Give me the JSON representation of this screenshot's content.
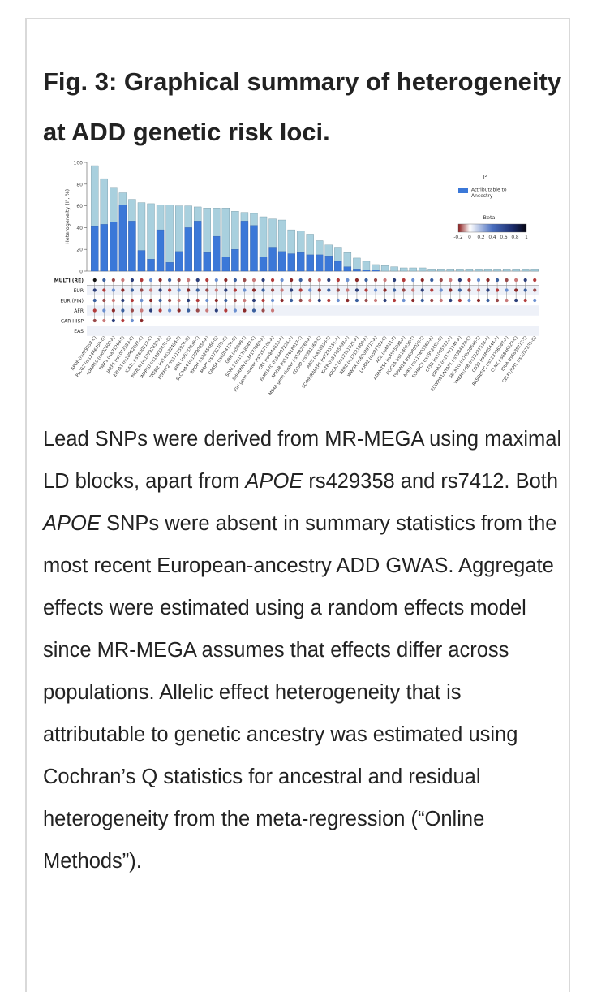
{
  "figure": {
    "title": "Fig. 3: Graphical summary of heterogeneity at ADD genetic risk loci."
  },
  "caption": {
    "t1": "Lead SNPs were derived from MR-MEGA using maximal LD blocks, apart from ",
    "gene1": "APOE",
    "t2": " rs429358 and rs7412. Both ",
    "gene2": "APOE",
    "t3": " SNPs were absent in summary statistics from the most recent European-ancestry ADD GWAS. Aggregate effects were estimated using a random effects model since MR-MEGA assumes that effects differ across populations. Allelic effect heterogeneity that is attributable to genetic ancestry was estimated using Cochran’s Q statistics for ancestral and residual heterogeneity from the meta-regression (“Online Methods”)."
  },
  "colors": {
    "total_bar": "#a9d0de",
    "ancestry_bar": "#3b78d8",
    "beta_neg": "#8b2a2a",
    "beta_pos": "#3b5f9e",
    "beta_mid": "#ffffff"
  },
  "chart_data": {
    "type": "bar",
    "ylabel": "Heterogeneity (I², %)",
    "yticks": [
      0,
      20,
      40,
      60,
      80,
      100
    ],
    "ylim": [
      0,
      100
    ],
    "legend": {
      "title": "I²",
      "entry": "Attributable to Ancestry",
      "colorbar_title": "Beta",
      "colorbar_ticks": [
        "-0.2",
        "0",
        "0.2",
        "0.4",
        "0.6",
        "0.8",
        "1"
      ]
    },
    "row_labels": [
      "MULTI (RE)",
      "EUR",
      "EUR (FIN)",
      "AFR",
      "CAR HISP",
      "EAS"
    ],
    "categories": [
      "APOE (rs429358-C)",
      "PLCG2 (rs12446759-G)",
      "ADAM10 (rs602602-A)",
      "TNIP1 (rs871269-T)",
      "JAZF1 (rs1073589-C)",
      "EPHA1 (rs10952097-C)",
      "ICA1L (rs7600212-C)",
      "PICALM (rs10792832-A)",
      "INPP5D (rs10933431-G)",
      "TREM2 (rs143332484-T)",
      "FERMT2 (rs17125924-G)",
      "BIN1 (rs6733839-T)",
      "SLC24A4 (rs12590654-A)",
      "RHOH (rs2245466-G)",
      "MAPT (rs2732703-G)",
      "CASS4 (rs6014724-G)",
      "GRN (rs5848-T)",
      "SORL1 (rs11218343-C)",
      "SHARPIN (rs34173062-A)",
      "IGH gene cluster (rs7157106-A)",
      "CR1 (rs4844610-A)",
      "FAM157C (rs56407236-A)",
      "APH1B (rs117618017-T)",
      "MS4A gene cluster (rs1582763-A)",
      "CD2AP (rs9381563-C)",
      "ABI3 (rs616338-T)",
      "SCIMP/RABEP1 (rs7225151-A)",
      "KAT8 (rs59735493-A)",
      "ABCA7 (rs12151021-A)",
      "RERE (rs12121004-A)",
      "WWOX (rs62039712-A)",
      "LILRB2 (rs587709-C)",
      "ACE (rs4311-T)",
      "ADAMTS4 (rs4575098-A)",
      "DOC2A (rs1140239-T)",
      "TSPAN14 (rs6586028-T)",
      "ANKH (rs112403360-A)",
      "ECHDC3 (rs7912495-G)",
      "CTSB (rs1065712-A)",
      "EPHA1 (rs11771145-A)",
      "ZCWPW1/NYAP1 (rs7384878-C)",
      "SEC61G (rs76928645-T)",
      "TMEM106B (rs13237518-A)",
      "CD33 (rs3865444-A)",
      "RASGEF1C (rs113706587-A)",
      "CLNK (rs6846529-C)",
      "IDUA (rs6839272-T)",
      "CELF1/SPI1 (rs1057233-G)"
    ],
    "series": [
      {
        "name": "I²",
        "values": [
          97,
          85,
          77,
          72,
          66,
          63,
          62,
          61,
          61,
          60,
          60,
          59,
          58,
          58,
          58,
          55,
          54,
          53,
          50,
          48,
          47,
          38,
          37,
          34,
          28,
          24,
          22,
          17,
          12,
          9,
          6,
          5,
          4,
          3,
          3,
          3,
          2,
          2,
          2,
          2,
          2,
          2,
          2,
          2,
          2,
          2,
          2,
          2
        ]
      },
      {
        "name": "Attributable to Ancestry",
        "values": [
          41,
          43,
          45,
          61,
          46,
          19,
          11,
          38,
          8,
          18,
          40,
          46,
          17,
          32,
          13,
          20,
          46,
          42,
          13,
          22,
          18,
          16,
          17,
          15,
          15,
          14,
          9,
          4,
          2,
          1,
          1,
          0,
          0,
          0,
          0,
          0,
          0,
          0,
          0,
          0,
          0,
          0,
          0,
          0,
          0,
          0,
          0,
          0
        ]
      }
    ]
  }
}
